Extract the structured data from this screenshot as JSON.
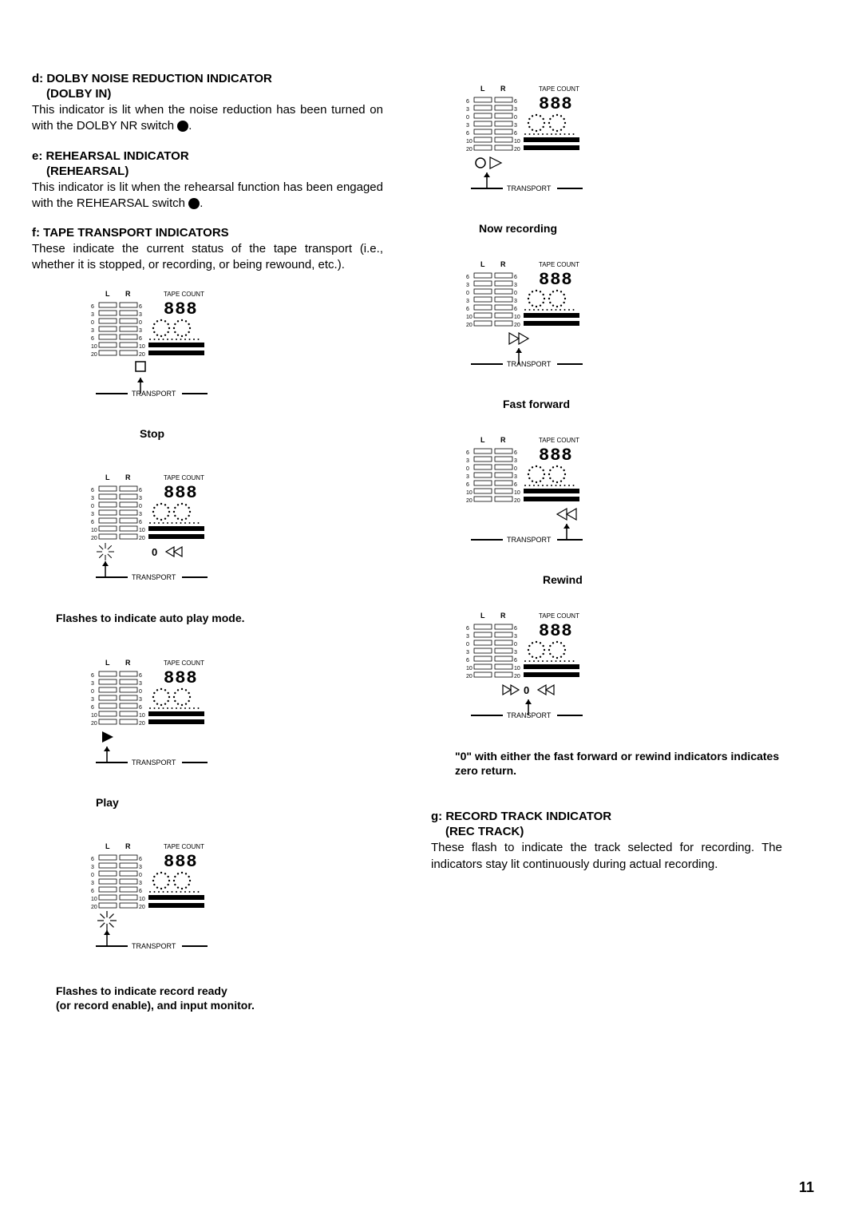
{
  "sections": {
    "d": {
      "head": "d: DOLBY NOISE REDUCTION INDICATOR",
      "sub": "(DOLBY IN)",
      "body_a": "This indicator is lit when the noise reduction has been turned on with the DOLBY NR switch ",
      "body_b": "."
    },
    "e": {
      "head": "e: REHEARSAL INDICATOR",
      "sub": "(REHEARSAL)",
      "body_a": "This indicator is lit when the rehearsal function has been engaged with the REHEARSAL switch ",
      "body_b": "."
    },
    "f": {
      "head": "f: TAPE TRANSPORT INDICATORS",
      "body": "These indicate the current status of the tape transport (i.e., whether it is stopped, or recording, or being rewound, etc.)."
    },
    "g": {
      "head": "g: RECORD TRACK INDICATOR",
      "sub": "(REC TRACK)",
      "body": "These flash to indicate the track selected for recording. The indicators stay lit continuously during actual recording."
    }
  },
  "diagrams": {
    "stop": {
      "caption": "Stop",
      "symbol": "stop",
      "pointer": "down-center"
    },
    "autoplay": {
      "caption": "Flashes to indicate auto play mode.",
      "symbol": "autoplay",
      "pointer": "down-left"
    },
    "play": {
      "caption": "Play",
      "symbol": "play",
      "pointer": "down-left"
    },
    "recready": {
      "caption_a": "Flashes to indicate record ready",
      "caption_b": "(or record enable), and input monitor.",
      "symbol": "recflash",
      "pointer": "down-left"
    },
    "nowrec": {
      "caption": "Now recording",
      "symbol": "recplay",
      "pointer": "down-left"
    },
    "ff": {
      "caption": "Fast forward",
      "symbol": "ff",
      "pointer": "down-center"
    },
    "rew": {
      "caption": "Rewind",
      "symbol": "rew",
      "pointer": "down-right"
    },
    "zeroreturn": {
      "caption": "\"0\" with either the fast forward or rewind indicators indicates zero return.",
      "symbol": "zero",
      "pointer": "down-center"
    }
  },
  "meter": {
    "labels_lr": "L     R",
    "label_tape": "TAPE COUNT",
    "levels": [
      "6",
      "3",
      "0",
      "3",
      "6",
      "10",
      "20"
    ],
    "count": "888",
    "transport": "TRANSPORT"
  },
  "page_number": "11",
  "colors": {
    "ink": "#000000",
    "paper": "#ffffff",
    "fill": "#000000"
  }
}
